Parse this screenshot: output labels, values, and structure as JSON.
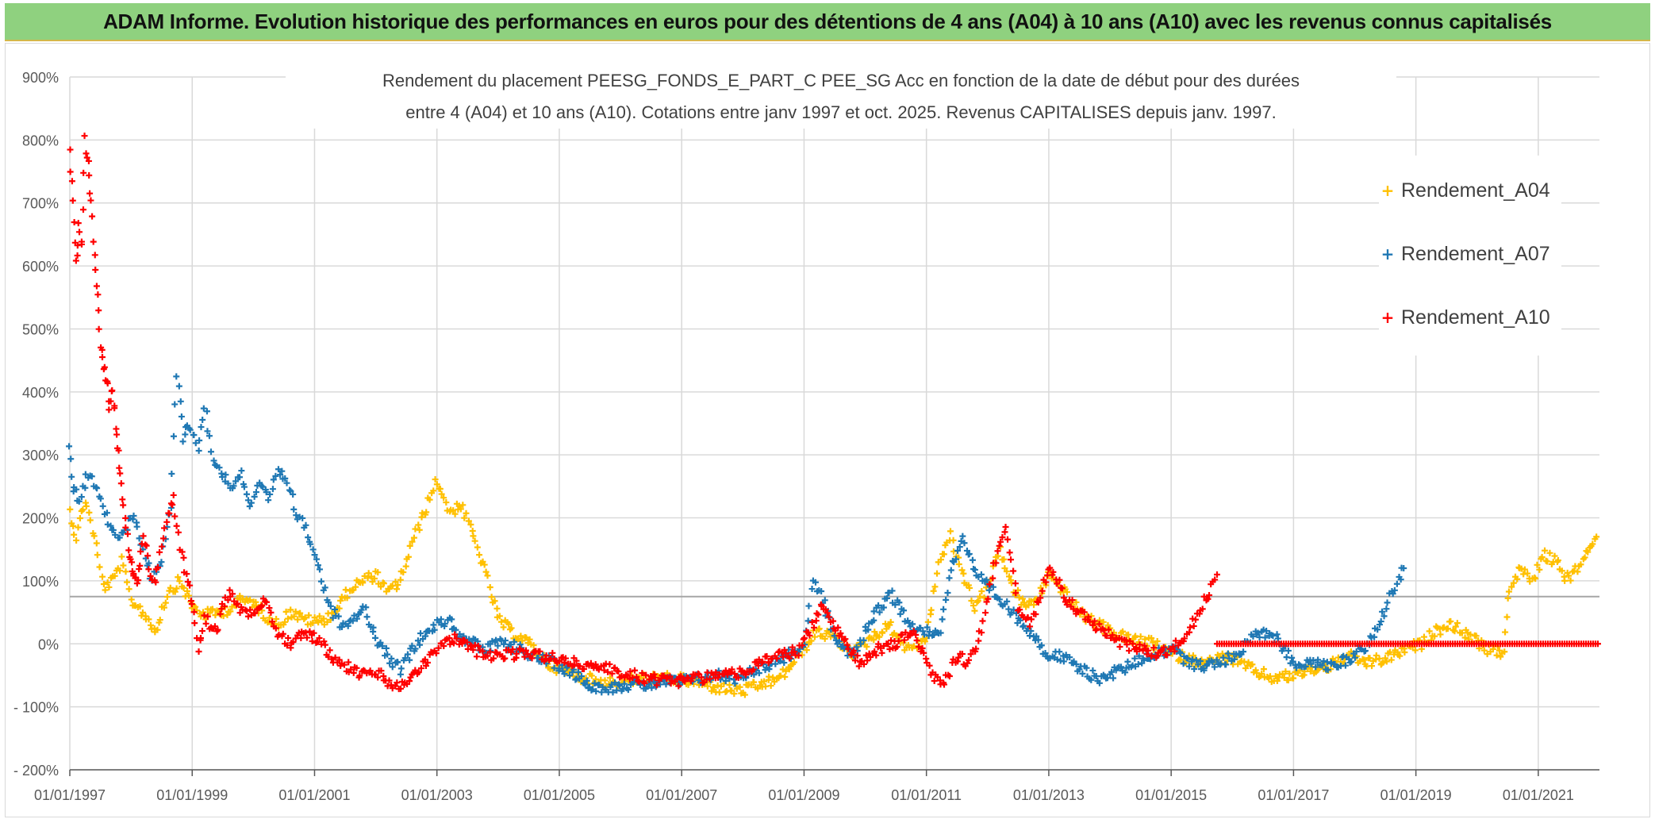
{
  "banner": {
    "title": "ADAM Informe. Evolution historique des performances en euros pour des détentions de 4 ans (A04) à 10 ans (A10) avec les revenus connus capitalisés"
  },
  "colors": {
    "banner_bg": "#8fd17f",
    "A04": "#ffc000",
    "A07": "#1f78b4",
    "A10": "#ff0000",
    "grid": "#d9d9d9",
    "reference_line": "#a6a6a6",
    "axis_text": "#595959"
  },
  "chart_data": {
    "type": "scatter",
    "title_line1": "Rendement du placement PEESG_FONDS_E_PART_C PEE_SG Acc en fonction de la date de début pour des durées",
    "title_line2": "entre 4 (A04) et 10 ans (A10). Cotations entre janv 1997 et oct. 2025. Revenus CAPITALISES depuis janv. 1997.",
    "xlabel": "",
    "ylabel": "",
    "x_range_years": [
      1997.0,
      2022.0
    ],
    "ylim": [
      -200,
      900
    ],
    "y_ticks": [
      -200,
      -100,
      0,
      100,
      200,
      300,
      400,
      500,
      600,
      700,
      800,
      900
    ],
    "y_tick_labels": [
      "- 200%",
      "- 100%",
      "0%",
      "100%",
      "200%",
      "300%",
      "400%",
      "500%",
      "600%",
      "700%",
      "800%",
      "900%"
    ],
    "x_ticks": [
      1997,
      1999,
      2001,
      2003,
      2005,
      2007,
      2009,
      2011,
      2013,
      2015,
      2017,
      2019,
      2021
    ],
    "x_tick_labels": [
      "01/01/1997",
      "01/01/1999",
      "01/01/2001",
      "01/01/2003",
      "01/01/2005",
      "01/01/2007",
      "01/01/2009",
      "01/01/2011",
      "01/01/2013",
      "01/01/2015",
      "01/01/2017",
      "01/01/2019",
      "01/01/2021"
    ],
    "reference_line_value": 75,
    "legend_position": "right",
    "marker": "+",
    "series": [
      {
        "name": "Rendement_A04",
        "x": [
          1997.0,
          1997.1,
          1997.25,
          1997.4,
          1997.55,
          1997.7,
          1997.85,
          1998.0,
          1998.2,
          1998.4,
          1998.6,
          1998.8,
          1999.0,
          1999.2,
          1999.4,
          1999.6,
          1999.8,
          2000.0,
          2000.2,
          2000.4,
          2000.6,
          2000.8,
          2001.0,
          2001.2,
          2001.4,
          2001.6,
          2001.8,
          2002.0,
          2002.2,
          2002.4,
          2002.6,
          2002.8,
          2003.0,
          2003.2,
          2003.4,
          2003.6,
          2003.8,
          2004.0,
          2004.2,
          2004.4,
          2004.6,
          2004.8,
          2005.0,
          2005.3,
          2005.6,
          2006.0,
          2006.4,
          2006.8,
          2007.2,
          2007.6,
          2008.0,
          2008.3,
          2008.6,
          2008.9,
          2009.2,
          2009.5,
          2009.8,
          2010.1,
          2010.4,
          2010.7,
          2011.0,
          2011.2,
          2011.4,
          2011.6,
          2011.8,
          2012.0,
          2012.2,
          2012.4,
          2012.6,
          2012.8,
          2013.0,
          2013.2,
          2013.5,
          2013.8,
          2014.1,
          2014.4,
          2014.7,
          2015.0,
          2015.3,
          2015.6,
          2015.9,
          2016.1,
          2016.4,
          2016.7,
          2017.0,
          2017.3,
          2017.6,
          2017.9,
          2018.2,
          2018.5,
          2018.8,
          2019.1,
          2019.3,
          2019.6,
          2019.9,
          2020.2,
          2020.45,
          2020.5,
          2020.7,
          2020.9,
          2021.1,
          2021.3,
          2021.5,
          2021.7,
          2021.85,
          2021.95
        ],
        "y": [
          210,
          170,
          230,
          170,
          90,
          100,
          130,
          70,
          50,
          20,
          80,
          100,
          60,
          45,
          50,
          55,
          70,
          65,
          45,
          30,
          50,
          40,
          35,
          40,
          60,
          90,
          100,
          110,
          80,
          100,
          160,
          210,
          260,
          210,
          220,
          170,
          110,
          40,
          20,
          10,
          -10,
          -30,
          -40,
          -50,
          -60,
          -60,
          -55,
          -55,
          -60,
          -70,
          -75,
          -65,
          -55,
          -20,
          20,
          10,
          -15,
          10,
          30,
          -10,
          10,
          130,
          170,
          110,
          60,
          90,
          150,
          90,
          60,
          70,
          110,
          90,
          50,
          30,
          15,
          5,
          0,
          -15,
          -25,
          -30,
          -20,
          -30,
          -45,
          -55,
          -50,
          -40,
          -35,
          -20,
          -30,
          -25,
          -10,
          0,
          20,
          30,
          10,
          -10,
          -15,
          80,
          120,
          100,
          140,
          130,
          100,
          130,
          150,
          170
        ]
      },
      {
        "name": "Rendement_A07",
        "x": [
          1997.0,
          1997.05,
          1997.15,
          1997.3,
          1997.45,
          1997.6,
          1997.75,
          1997.9,
          1998.05,
          1998.2,
          1998.35,
          1998.5,
          1998.65,
          1998.75,
          1998.85,
          1998.95,
          1999.1,
          1999.2,
          1999.35,
          1999.5,
          1999.65,
          1999.8,
          1999.95,
          2000.1,
          2000.25,
          2000.4,
          2000.55,
          2000.7,
          2000.85,
          2001.0,
          2001.15,
          2001.3,
          2001.45,
          2001.6,
          2001.8,
          2002.0,
          2002.2,
          2002.4,
          2002.6,
          2002.8,
          2003.0,
          2003.2,
          2003.4,
          2003.6,
          2003.8,
          2004.0,
          2004.3,
          2004.6,
          2004.9,
          2005.2,
          2005.5,
          2005.8,
          2006.1,
          2006.4,
          2006.7,
          2007.0,
          2007.3,
          2007.6,
          2007.9,
          2008.2,
          2008.5,
          2008.8,
          2009.0,
          2009.15,
          2009.3,
          2009.5,
          2009.8,
          2010.1,
          2010.4,
          2010.6,
          2010.8,
          2011.0,
          2011.2,
          2011.4,
          2011.6,
          2011.8,
          2012.0,
          2012.2,
          2012.4,
          2012.6,
          2012.8,
          2013.0,
          2013.2,
          2013.5,
          2013.8,
          2014.1,
          2014.4,
          2014.7,
          2015.0,
          2015.3,
          2015.6,
          2015.9,
          2016.1,
          2016.4,
          2016.7,
          2017.0,
          2017.3,
          2017.6,
          2017.9,
          2018.2,
          2018.4,
          2018.6,
          2018.8
        ],
        "y": [
          310,
          250,
          230,
          270,
          250,
          200,
          170,
          180,
          210,
          150,
          100,
          130,
          220,
          430,
          330,
          350,
          310,
          380,
          290,
          270,
          250,
          270,
          220,
          250,
          230,
          270,
          260,
          210,
          180,
          150,
          90,
          50,
          30,
          40,
          60,
          10,
          -20,
          -40,
          -10,
          20,
          30,
          40,
          10,
          0,
          -10,
          0,
          -5,
          -20,
          -30,
          -45,
          -65,
          -70,
          -65,
          -65,
          -60,
          -60,
          -55,
          -50,
          -55,
          -40,
          -30,
          -15,
          0,
          100,
          70,
          10,
          -20,
          40,
          80,
          50,
          30,
          20,
          10,
          120,
          170,
          110,
          90,
          70,
          50,
          30,
          10,
          -20,
          -20,
          -40,
          -55,
          -45,
          -30,
          -15,
          -10,
          -30,
          -35,
          -25,
          -15,
          20,
          10,
          -30,
          -30,
          -35,
          -25,
          0,
          30,
          80,
          120
        ]
      },
      {
        "name": "Rendement_A10",
        "x": [
          1997.0,
          1997.05,
          1997.1,
          1997.15,
          1997.2,
          1997.25,
          1997.3,
          1997.35,
          1997.4,
          1997.45,
          1997.5,
          1997.55,
          1997.6,
          1997.65,
          1997.7,
          1997.75,
          1997.8,
          1997.85,
          1997.9,
          1997.95,
          1998.0,
          1998.05,
          1998.1,
          1998.15,
          1998.2,
          1998.3,
          1998.4,
          1998.5,
          1998.6,
          1998.7,
          1998.8,
          1998.9,
          1999.0,
          1999.1,
          1999.2,
          1999.3,
          1999.4,
          1999.5,
          1999.6,
          1999.8,
          2000.0,
          2000.2,
          2000.4,
          2000.6,
          2000.8,
          2001.0,
          2001.2,
          2001.4,
          2001.6,
          2001.8,
          2002.0,
          2002.2,
          2002.4,
          2002.6,
          2002.8,
          2003.0,
          2003.3,
          2003.6,
          2004.0,
          2004.4,
          2004.8,
          2005.2,
          2005.6,
          2006.0,
          2006.4,
          2006.8,
          2007.2,
          2007.6,
          2008.0,
          2008.3,
          2008.6,
          2008.9,
          2009.1,
          2009.3,
          2009.6,
          2009.9,
          2010.2,
          2010.5,
          2010.8,
          2011.1,
          2011.3,
          2011.5,
          2011.7,
          2011.9,
          2012.1,
          2012.3,
          2012.5,
          2012.7,
          2013.0,
          2013.3,
          2013.6,
          2013.9,
          2014.2,
          2014.5,
          2014.8,
          2015.0,
          2015.2,
          2015.4,
          2015.6,
          2015.75
        ],
        "y": [
          780,
          700,
          600,
          660,
          640,
          800,
          760,
          700,
          620,
          550,
          470,
          440,
          420,
          380,
          400,
          350,
          300,
          250,
          200,
          150,
          130,
          110,
          90,
          130,
          180,
          120,
          100,
          150,
          210,
          230,
          150,
          110,
          60,
          -10,
          40,
          30,
          20,
          60,
          80,
          50,
          50,
          70,
          20,
          0,
          20,
          10,
          -10,
          -30,
          -40,
          -50,
          -45,
          -60,
          -70,
          -50,
          -30,
          -10,
          10,
          -10,
          -20,
          -15,
          -20,
          -30,
          -35,
          -45,
          -55,
          -60,
          -55,
          -50,
          -45,
          -30,
          -20,
          -10,
          20,
          60,
          10,
          -30,
          -10,
          0,
          20,
          -50,
          -60,
          -20,
          -30,
          20,
          120,
          190,
          60,
          30,
          120,
          70,
          40,
          20,
          0,
          -10,
          -15,
          -10,
          10,
          40,
          80,
          110
        ]
      }
    ],
    "flat_segment": {
      "series": "Rendement_A10",
      "from_year": 2015.75,
      "to_year": 2022.0,
      "value": 0
    }
  }
}
